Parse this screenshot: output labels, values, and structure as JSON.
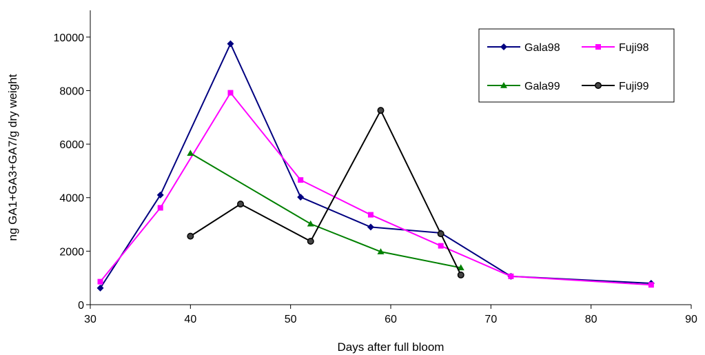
{
  "chart_data": {
    "type": "line",
    "title": "",
    "xlabel": "Days after full bloom",
    "ylabel": "ng GA1+GA3+GA7/g dry weight",
    "xlim": [
      30,
      90
    ],
    "ylim": [
      0,
      11000
    ],
    "x_ticks": [
      30,
      40,
      50,
      60,
      70,
      80,
      90
    ],
    "y_ticks": [
      0,
      2000,
      4000,
      6000,
      8000,
      10000
    ],
    "grid": false,
    "legend_position": "top-right",
    "series": [
      {
        "name": "Gala98",
        "color": "#000080",
        "marker": "diamond",
        "x": [
          31,
          37,
          44,
          51,
          58,
          65,
          72,
          86
        ],
        "y": [
          620,
          4100,
          9750,
          4020,
          2900,
          2680,
          1060,
          800
        ]
      },
      {
        "name": "Fuji98",
        "color": "#FF00FF",
        "marker": "square",
        "x": [
          31,
          37,
          44,
          51,
          58,
          65,
          72,
          86
        ],
        "y": [
          860,
          3620,
          7920,
          4660,
          3360,
          2200,
          1060,
          740
        ]
      },
      {
        "name": "Gala99",
        "color": "#008000",
        "marker": "triangle",
        "x": [
          40,
          52,
          59,
          67
        ],
        "y": [
          5660,
          3020,
          1980,
          1380
        ]
      },
      {
        "name": "Fuji99",
        "color": "#000000",
        "marker": "circle",
        "x": [
          40,
          45,
          52,
          59,
          65,
          67
        ],
        "y": [
          2560,
          3760,
          2370,
          7260,
          2650,
          1110
        ]
      }
    ]
  }
}
